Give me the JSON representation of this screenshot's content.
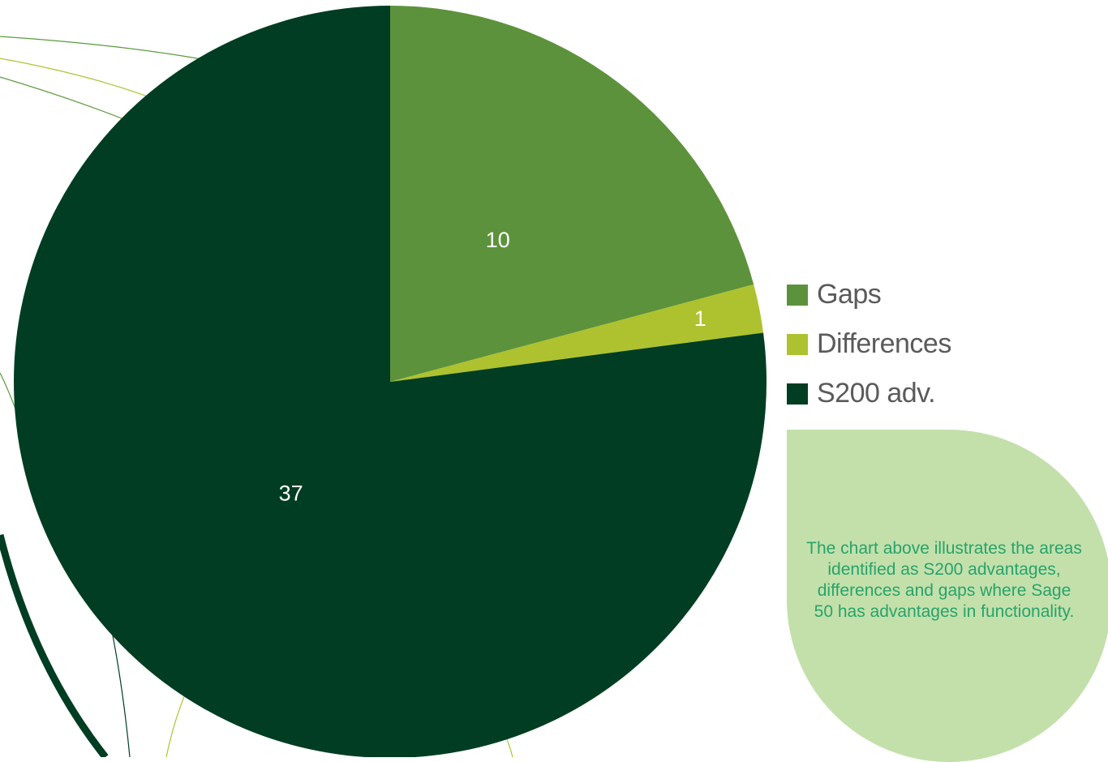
{
  "colors": {
    "background": "#ffffff",
    "note_bg": "#c3e0ab",
    "note_text": "#27a36b",
    "decor_line": "#5c9a3d",
    "decor_line_light": "#a9c531",
    "decor_line_dark": "#003d22"
  },
  "chart_data": {
    "type": "pie",
    "slices": [
      {
        "label": "Gaps",
        "value": 10,
        "color": "#5d923c"
      },
      {
        "label": "Differences",
        "value": 1,
        "color": "#adc22e"
      },
      {
        "label": "S200 adv.",
        "value": 37,
        "color": "#003d22"
      }
    ],
    "start_angle_deg": 0,
    "direction": "clockwise",
    "legend_placement": "right"
  },
  "legend": {
    "items": [
      {
        "label": "Gaps",
        "color": "#5d923c"
      },
      {
        "label": "Differences",
        "color": "#adc22e"
      },
      {
        "label": "S200 adv.",
        "color": "#003d22"
      }
    ]
  },
  "note": {
    "text": "The chart above illustrates the areas identified as S200 advantages, differences and gaps where Sage 50 has advantages in functionality."
  }
}
